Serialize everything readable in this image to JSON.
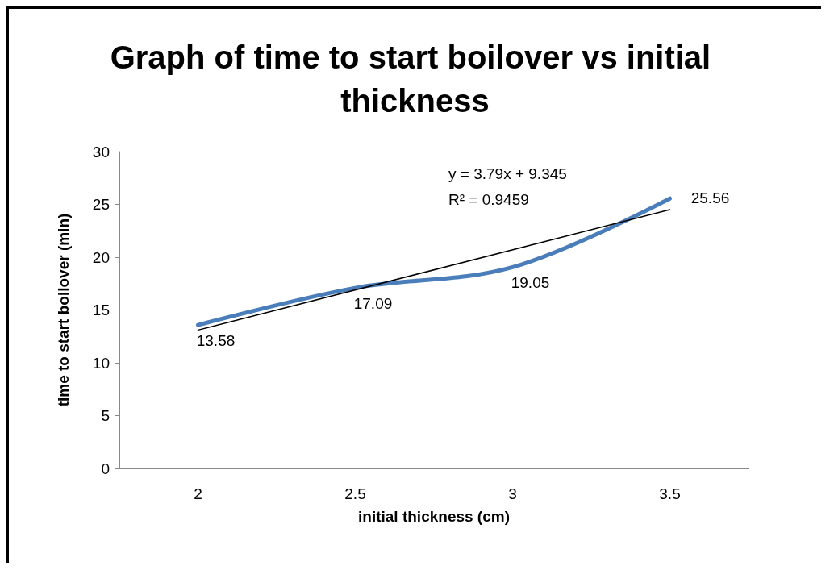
{
  "chart_data": {
    "type": "line",
    "title": "Graph of time to start boilover vs initial thickness",
    "xlabel": "initial thickness (cm)",
    "ylabel": "time to start boilover (min)",
    "categories": [
      "2",
      "2.5",
      "3",
      "3.5"
    ],
    "series": [
      {
        "color": "#4a7ebb",
        "values": [
          13.58,
          17.09,
          19.05,
          25.56
        ],
        "data_labels": true
      },
      {
        "type": "line",
        "color": "#000000",
        "x": [
          "2",
          "3.5"
        ],
        "values": [
          13.1,
          24.5
        ]
      }
    ],
    "ylim": [
      0,
      30
    ],
    "yticks": [
      0,
      5,
      10,
      15,
      20,
      25,
      30
    ],
    "grid": false,
    "marker": "none",
    "line_style": "solid",
    "annotations": [
      "y = 3.79x + 9.345",
      "R² = 0.9459"
    ]
  }
}
